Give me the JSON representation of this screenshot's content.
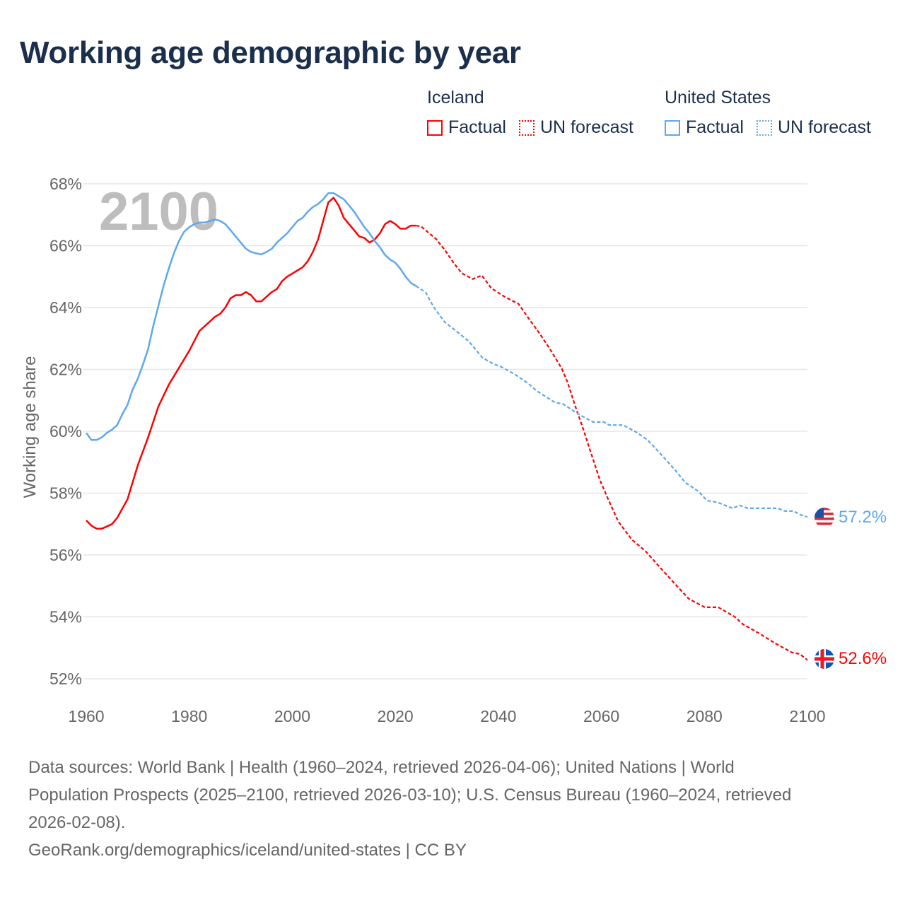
{
  "title": "Working age demographic by year",
  "legend": {
    "groups": [
      {
        "name": "Iceland",
        "items": [
          "Factual",
          "UN forecast"
        ],
        "color": "#ff0000"
      },
      {
        "name": "United States",
        "items": [
          "Factual",
          "UN forecast"
        ],
        "color": "#5ea8ee"
      }
    ]
  },
  "year_watermark": "2100",
  "end_labels": {
    "iceland": "52.6%",
    "united_states": "57.2%"
  },
  "sources": {
    "line1": "Data sources: World Bank | Health (1960–2024, retrieved 2026-04-06); United Nations | World",
    "line2": "Population Prospects (2025–2100, retrieved 2026-03-10); U.S. Census Bureau (1960–2024, retrieved",
    "line3": "2026-02-08).",
    "credit": "GeoRank.org/demographics/iceland/united-states | CC BY"
  },
  "chart_data": {
    "type": "line",
    "title": "Working age demographic by year",
    "xlabel": "",
    "ylabel": "Working age share",
    "xlim": [
      1960,
      2100
    ],
    "ylim": [
      52,
      68
    ],
    "xticks": [
      "1960",
      "1980",
      "2000",
      "2020",
      "2040",
      "2060",
      "2080",
      "2100"
    ],
    "xtick_values": [
      1960,
      1980,
      2000,
      2020,
      2040,
      2060,
      2080,
      2100
    ],
    "yticks": [
      "52%",
      "54%",
      "56%",
      "58%",
      "60%",
      "62%",
      "64%",
      "66%",
      "68%"
    ],
    "ytick_values": [
      52,
      54,
      56,
      58,
      60,
      62,
      64,
      66,
      68
    ],
    "grid": true,
    "legend_position": "top-right",
    "series": [
      {
        "name": "Iceland – Factual",
        "color": "#ff0000",
        "dashed": false,
        "points": [
          [
            1960,
            57.12
          ],
          [
            1961,
            56.95
          ],
          [
            1962,
            56.85
          ],
          [
            1963,
            56.85
          ],
          [
            1965,
            57.0
          ],
          [
            1966,
            57.2
          ],
          [
            1968,
            57.8
          ],
          [
            1970,
            58.9
          ],
          [
            1972,
            59.8
          ],
          [
            1974,
            60.8
          ],
          [
            1976,
            61.5
          ],
          [
            1978,
            62.05
          ],
          [
            1980,
            62.6
          ],
          [
            1982,
            63.25
          ],
          [
            1983,
            63.4
          ],
          [
            1984,
            63.55
          ],
          [
            1985,
            63.7
          ],
          [
            1986,
            63.8
          ],
          [
            1987,
            64.0
          ],
          [
            1988,
            64.3
          ],
          [
            1989,
            64.4
          ],
          [
            1990,
            64.4
          ],
          [
            1991,
            64.5
          ],
          [
            1992,
            64.4
          ],
          [
            1993,
            64.2
          ],
          [
            1994,
            64.2
          ],
          [
            1995,
            64.35
          ],
          [
            1996,
            64.5
          ],
          [
            1997,
            64.6
          ],
          [
            1998,
            64.85
          ],
          [
            1999,
            65.0
          ],
          [
            2000,
            65.1
          ],
          [
            2001,
            65.2
          ],
          [
            2002,
            65.3
          ],
          [
            2003,
            65.5
          ],
          [
            2004,
            65.8
          ],
          [
            2005,
            66.2
          ],
          [
            2006,
            66.8
          ],
          [
            2007,
            67.4
          ],
          [
            2008,
            67.55
          ],
          [
            2009,
            67.3
          ],
          [
            2010,
            66.9
          ],
          [
            2011,
            66.7
          ],
          [
            2012,
            66.5
          ],
          [
            2013,
            66.3
          ],
          [
            2014,
            66.25
          ],
          [
            2015,
            66.1
          ],
          [
            2016,
            66.2
          ],
          [
            2017,
            66.4
          ],
          [
            2018,
            66.7
          ],
          [
            2019,
            66.8
          ],
          [
            2020,
            66.7
          ],
          [
            2021,
            66.55
          ],
          [
            2022,
            66.55
          ],
          [
            2023,
            66.65
          ],
          [
            2024,
            66.65
          ]
        ]
      },
      {
        "name": "Iceland – UN forecast",
        "color": "#ff0000",
        "dashed": true,
        "points": [
          [
            2024,
            66.65
          ],
          [
            2025,
            66.62
          ],
          [
            2027.9,
            66.22
          ],
          [
            2029.7,
            65.84
          ],
          [
            2031.3,
            65.45
          ],
          [
            2032.9,
            65.11
          ],
          [
            2035,
            64.92
          ],
          [
            2036.8,
            65.04
          ],
          [
            2038.6,
            64.63
          ],
          [
            2041.3,
            64.34
          ],
          [
            2043.9,
            64.12
          ],
          [
            2046,
            63.62
          ],
          [
            2048.1,
            63.14
          ],
          [
            2050.2,
            62.61
          ],
          [
            2052.3,
            62.03
          ],
          [
            2053.4,
            61.6
          ],
          [
            2054.9,
            60.83
          ],
          [
            2056.5,
            60.06
          ],
          [
            2058,
            59.29
          ],
          [
            2059.7,
            58.43
          ],
          [
            2061.2,
            57.85
          ],
          [
            2063.3,
            57.08
          ],
          [
            2065.9,
            56.5
          ],
          [
            2068.6,
            56.12
          ],
          [
            2071.7,
            55.54
          ],
          [
            2074.3,
            55.06
          ],
          [
            2077,
            54.58
          ],
          [
            2080.1,
            54.31
          ],
          [
            2082.7,
            54.31
          ],
          [
            2085.9,
            54.0
          ],
          [
            2087.5,
            53.76
          ],
          [
            2090.6,
            53.47
          ],
          [
            2093.8,
            53.14
          ],
          [
            2097,
            52.85
          ],
          [
            2098.5,
            52.8
          ],
          [
            2100,
            52.6
          ]
        ]
      },
      {
        "name": "United States – Factual",
        "color": "#5ea8ee",
        "dashed": false,
        "points": [
          [
            1960,
            59.95
          ],
          [
            1961,
            59.72
          ],
          [
            1962,
            59.72
          ],
          [
            1963,
            59.8
          ],
          [
            1964,
            59.95
          ],
          [
            1965,
            60.05
          ],
          [
            1966,
            60.2
          ],
          [
            1967,
            60.55
          ],
          [
            1968,
            60.85
          ],
          [
            1969,
            61.35
          ],
          [
            1970,
            61.7
          ],
          [
            1971,
            62.15
          ],
          [
            1972,
            62.65
          ],
          [
            1973,
            63.4
          ],
          [
            1974,
            64.05
          ],
          [
            1975,
            64.7
          ],
          [
            1976,
            65.25
          ],
          [
            1977,
            65.75
          ],
          [
            1978,
            66.15
          ],
          [
            1979,
            66.45
          ],
          [
            1980,
            66.6
          ],
          [
            1981,
            66.7
          ],
          [
            1982,
            66.75
          ],
          [
            1983,
            66.75
          ],
          [
            1984,
            66.8
          ],
          [
            1985,
            66.85
          ],
          [
            1986,
            66.8
          ],
          [
            1987,
            66.7
          ],
          [
            1988,
            66.5
          ],
          [
            1989,
            66.3
          ],
          [
            1990,
            66.1
          ],
          [
            1991,
            65.9
          ],
          [
            1992,
            65.8
          ],
          [
            1993,
            65.75
          ],
          [
            1994,
            65.72
          ],
          [
            1995,
            65.8
          ],
          [
            1996,
            65.9
          ],
          [
            1997,
            66.1
          ],
          [
            1998,
            66.25
          ],
          [
            1999,
            66.4
          ],
          [
            2000,
            66.6
          ],
          [
            2001,
            66.8
          ],
          [
            2002,
            66.9
          ],
          [
            2003,
            67.1
          ],
          [
            2004,
            67.25
          ],
          [
            2005,
            67.35
          ],
          [
            2006,
            67.5
          ],
          [
            2007,
            67.7
          ],
          [
            2008,
            67.7
          ],
          [
            2009,
            67.6
          ],
          [
            2010,
            67.5
          ],
          [
            2011,
            67.3
          ],
          [
            2012,
            67.1
          ],
          [
            2013,
            66.85
          ],
          [
            2014,
            66.6
          ],
          [
            2015,
            66.4
          ],
          [
            2016,
            66.15
          ],
          [
            2017,
            65.95
          ],
          [
            2018,
            65.7
          ],
          [
            2019,
            65.55
          ],
          [
            2020,
            65.45
          ],
          [
            2021,
            65.25
          ],
          [
            2022,
            65.0
          ],
          [
            2023,
            64.8
          ],
          [
            2024,
            64.7
          ]
        ]
      },
      {
        "name": "United States – UN forecast",
        "color": "#5ea8ee",
        "dashed": true,
        "points": [
          [
            2024,
            64.7
          ],
          [
            2025.9,
            64.49
          ],
          [
            2027.5,
            64.0
          ],
          [
            2029.6,
            63.53
          ],
          [
            2032.2,
            63.19
          ],
          [
            2034.3,
            62.9
          ],
          [
            2036.9,
            62.38
          ],
          [
            2039,
            62.18
          ],
          [
            2040.6,
            62.08
          ],
          [
            2043.2,
            61.84
          ],
          [
            2045.8,
            61.55
          ],
          [
            2047.4,
            61.31
          ],
          [
            2051,
            60.93
          ],
          [
            2052.6,
            60.88
          ],
          [
            2055.7,
            60.54
          ],
          [
            2058.4,
            60.3
          ],
          [
            2060.5,
            60.3
          ],
          [
            2061.5,
            60.2
          ],
          [
            2064.2,
            60.2
          ],
          [
            2066.8,
            59.97
          ],
          [
            2068.9,
            59.73
          ],
          [
            2071.6,
            59.25
          ],
          [
            2074.2,
            58.77
          ],
          [
            2076.3,
            58.34
          ],
          [
            2078.9,
            58.05
          ],
          [
            2080.5,
            57.76
          ],
          [
            2082.6,
            57.7
          ],
          [
            2084.7,
            57.56
          ],
          [
            2085.5,
            57.51
          ],
          [
            2086.8,
            57.61
          ],
          [
            2088.4,
            57.51
          ],
          [
            2094.2,
            57.51
          ],
          [
            2095.7,
            57.42
          ],
          [
            2097.3,
            57.42
          ],
          [
            2098.8,
            57.29
          ],
          [
            2100,
            57.23
          ]
        ]
      }
    ],
    "end_values": {
      "Iceland": 52.6,
      "United States": 57.2
    }
  }
}
